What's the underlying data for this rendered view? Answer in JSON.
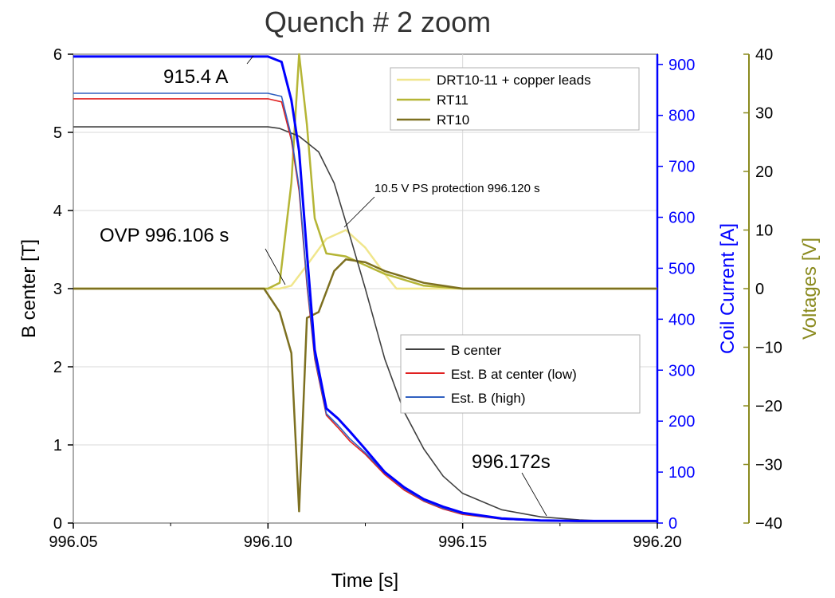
{
  "chart_data": {
    "type": "line",
    "title": "Quench # 2 zoom",
    "xlabel": "Time [s]",
    "xlim": [
      996.05,
      996.2
    ],
    "xticks": [
      "996.05",
      "996.10",
      "996.15",
      "996.20"
    ],
    "axes": {
      "left": {
        "label": "B center [T]",
        "ylim": [
          0,
          6
        ],
        "ticks": [
          "0",
          "1",
          "2",
          "3",
          "4",
          "5",
          "6"
        ],
        "color": "#000000"
      },
      "right1": {
        "label": "Coil Current [A]",
        "ylim": [
          0,
          920
        ],
        "ticks": [
          "0",
          "100",
          "200",
          "300",
          "400",
          "500",
          "600",
          "700",
          "800",
          "900"
        ],
        "color": "#0000ff"
      },
      "right2": {
        "label": "Voltages [V]",
        "ylim": [
          -40,
          40
        ],
        "ticks": [
          "−40",
          "−30",
          "−20",
          "−10",
          "0",
          "10",
          "20",
          "30",
          "40"
        ],
        "color": "#8a8a1e"
      }
    },
    "series": [
      {
        "name": "DRT10-11 + copper leads",
        "axis": "right2",
        "color": "#f0e68c",
        "x": [
          996.05,
          996.1,
          996.103,
          996.106,
          996.11,
          996.115,
          996.12,
          996.125,
          996.13,
          996.133,
          996.15,
          996.2
        ],
        "y": [
          0,
          0,
          0,
          0.5,
          4,
          8.5,
          10,
          7,
          2.5,
          0,
          0,
          0
        ]
      },
      {
        "name": "RT11",
        "axis": "right2",
        "color": "#b5b535",
        "x": [
          996.05,
          996.1,
          996.103,
          996.106,
          996.108,
          996.11,
          996.112,
          996.115,
          996.12,
          996.125,
          996.13,
          996.14,
          996.15,
          996.2
        ],
        "y": [
          0,
          0,
          1,
          18,
          40,
          28,
          12,
          6,
          5.5,
          4,
          2.5,
          0.5,
          0,
          0
        ]
      },
      {
        "name": "RT10",
        "axis": "right2",
        "color": "#7d7020",
        "x": [
          996.05,
          996.099,
          996.103,
          996.106,
          996.108,
          996.11,
          996.113,
          996.117,
          996.12,
          996.125,
          996.13,
          996.14,
          996.15,
          996.2
        ],
        "y": [
          0,
          0,
          -4,
          -11,
          -38,
          -5,
          -4,
          3,
          5,
          4.5,
          3,
          1,
          0,
          0
        ]
      },
      {
        "name": "B center",
        "axis": "left",
        "color": "#404040",
        "x": [
          996.05,
          996.1,
          996.103,
          996.108,
          996.113,
          996.117,
          996.12,
          996.125,
          996.13,
          996.135,
          996.14,
          996.145,
          996.15,
          996.16,
          996.17,
          996.18,
          996.19,
          996.2
        ],
        "y": [
          5.07,
          5.07,
          5.05,
          4.95,
          4.75,
          4.35,
          3.85,
          3.0,
          2.1,
          1.42,
          0.95,
          0.6,
          0.38,
          0.17,
          0.08,
          0.04,
          0.02,
          0.02
        ]
      },
      {
        "name": "Est. B at center (low)",
        "axis": "left",
        "color": "#e02020",
        "x": [
          996.05,
          996.1,
          996.1035,
          996.106,
          996.108,
          996.11,
          996.112,
          996.115,
          996.118,
          996.121,
          996.125,
          996.13,
          996.135,
          996.14,
          996.145,
          996.15,
          996.16,
          996.17,
          996.18,
          996.2
        ],
        "y": [
          5.43,
          5.43,
          5.39,
          4.9,
          4.25,
          3.05,
          2.1,
          1.38,
          1.22,
          1.05,
          0.88,
          0.62,
          0.42,
          0.28,
          0.18,
          0.11,
          0.05,
          0.03,
          0.02,
          0.02
        ]
      },
      {
        "name": "Est. B (high)",
        "axis": "left",
        "color": "#3060c0",
        "x": [
          996.05,
          996.1,
          996.1035,
          996.106,
          996.108,
          996.11,
          996.112,
          996.115,
          996.118,
          996.121,
          996.125,
          996.13,
          996.135,
          996.14,
          996.145,
          996.15,
          996.16,
          996.17,
          996.18,
          996.2
        ],
        "y": [
          5.5,
          5.5,
          5.46,
          4.95,
          4.3,
          3.1,
          2.13,
          1.4,
          1.25,
          1.08,
          0.9,
          0.64,
          0.44,
          0.29,
          0.19,
          0.12,
          0.05,
          0.03,
          0.02,
          0.02
        ]
      },
      {
        "name": "Coil Current",
        "axis": "right1",
        "color": "#0000ff",
        "x": [
          996.05,
          996.1,
          996.1035,
          996.106,
          996.108,
          996.11,
          996.112,
          996.115,
          996.118,
          996.121,
          996.125,
          996.13,
          996.135,
          996.14,
          996.145,
          996.15,
          996.16,
          996.17,
          996.18,
          996.2
        ],
        "y": [
          915.4,
          915.4,
          905,
          830,
          730,
          530,
          340,
          225,
          205,
          180,
          145,
          100,
          70,
          47,
          32,
          20,
          9,
          5,
          4,
          4
        ]
      }
    ],
    "legend_top": [
      "DRT10-11 + copper leads",
      "RT11",
      "RT10"
    ],
    "legend_bottom": [
      "B center",
      "Est. B at center (low)",
      "Est. B (high)"
    ],
    "annotations": {
      "current_peak": "915.4 A",
      "ovp": "OVP 996.106 s",
      "ps_protection": "10.5 V PS protection 996.120 s",
      "end_time": "996.172s"
    }
  }
}
